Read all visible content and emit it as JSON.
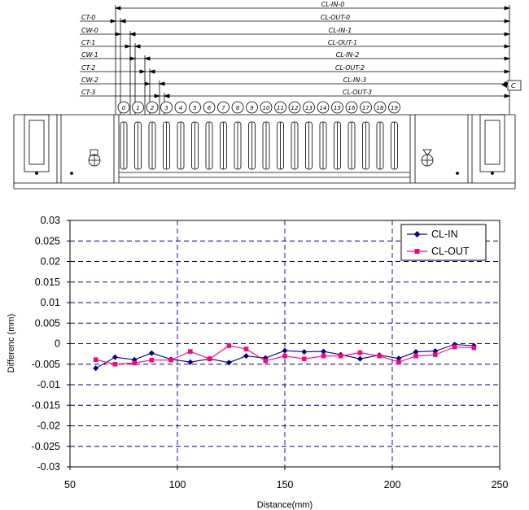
{
  "drawing": {
    "left_labels": [
      "CT-0",
      "CW-0",
      "CT-1",
      "CW-1",
      "CT-2",
      "CW-2",
      "CT-3"
    ],
    "right_labels": [
      "CL-IN-0",
      "CL-OUT-0",
      "CL-IN-1",
      "CL-OUT-1",
      "CL-IN-2",
      "CL-OUT-2",
      "CL-IN-3",
      "CL-OUT-3"
    ],
    "datum": "C",
    "balloons": [
      "0",
      "1",
      "2",
      "3",
      "4",
      "5",
      "6",
      "7",
      "8",
      "9",
      "10",
      "11",
      "12",
      "13",
      "14",
      "15",
      "16",
      "17",
      "18",
      "19"
    ]
  },
  "chart_data": {
    "type": "line",
    "title": "",
    "xlabel": "Distance(mm)",
    "ylabel": "Differenc (mm)",
    "xlim": [
      50,
      250
    ],
    "ylim": [
      -0.03,
      0.03
    ],
    "xticks": [
      "50",
      "100",
      "150",
      "200",
      "250"
    ],
    "yticks": [
      "0.03",
      "0.025",
      "0.02",
      "0.015",
      "0.01",
      "0.005",
      "0",
      "-0.005",
      "-0.01",
      "-0.015",
      "-0.02",
      "-0.025",
      "-0.03"
    ],
    "grid": "dashed",
    "legend_position": "top-right",
    "series": [
      {
        "name": "CL-IN",
        "color": "#000080",
        "marker": "diamond",
        "x": [
          62,
          71,
          80,
          88,
          97,
          106,
          115,
          124,
          132,
          141,
          150,
          159,
          168,
          176,
          185,
          194,
          203,
          211,
          220,
          229,
          238
        ],
        "y": [
          -0.006,
          -0.0033,
          -0.0039,
          -0.0023,
          -0.0038,
          -0.0045,
          -0.0037,
          -0.0046,
          -0.003,
          -0.0035,
          -0.0017,
          -0.002,
          -0.0019,
          -0.0027,
          -0.0037,
          -0.0028,
          -0.0036,
          -0.002,
          -0.0018,
          -0.0002,
          -0.0005
        ]
      },
      {
        "name": "CL-OUT",
        "color": "#FF0080",
        "marker": "square",
        "x": [
          62,
          71,
          80,
          88,
          97,
          106,
          115,
          124,
          132,
          141,
          150,
          159,
          168,
          176,
          185,
          194,
          203,
          211,
          220,
          229,
          238
        ],
        "y": [
          -0.0039,
          -0.005,
          -0.0047,
          -0.004,
          -0.004,
          -0.0019,
          -0.0037,
          -0.0005,
          -0.0013,
          -0.0042,
          -0.003,
          -0.0037,
          -0.003,
          -0.003,
          -0.0022,
          -0.003,
          -0.0045,
          -0.003,
          -0.0027,
          -0.0008,
          -0.001
        ]
      }
    ]
  }
}
